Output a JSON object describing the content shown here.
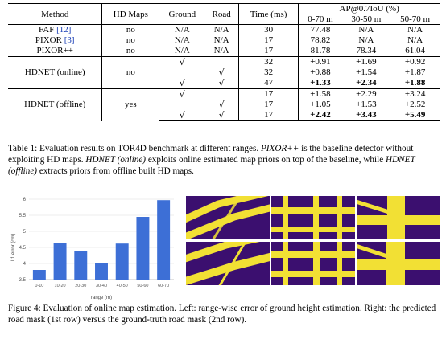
{
  "table": {
    "headers": {
      "method": "Method",
      "hd_maps": "HD Maps",
      "ground": "Ground",
      "road": "Road",
      "time": "Time (ms)",
      "ap": "AP@0.7IoU (%)",
      "ranges": [
        "0-70 m",
        "30-50 m",
        "50-70 m"
      ]
    },
    "baselines": [
      {
        "method": "FAF",
        "cite": "[12]",
        "hd_maps": "no",
        "ground": "N/A",
        "road": "N/A",
        "time": "30",
        "ap": [
          "77.48",
          "N/A",
          "N/A"
        ]
      },
      {
        "method": "PIXOR",
        "cite": "[3]",
        "hd_maps": "no",
        "ground": "N/A",
        "road": "N/A",
        "time": "17",
        "ap": [
          "78.82",
          "N/A",
          "N/A"
        ]
      },
      {
        "method": "PIXOR++",
        "cite": "",
        "hd_maps": "no",
        "ground": "N/A",
        "road": "N/A",
        "time": "17",
        "ap": [
          "81.78",
          "78.34",
          "61.04"
        ]
      }
    ],
    "online": {
      "method": "HDNET (online)",
      "hd_maps": "no",
      "rows": [
        {
          "ground": "√",
          "road": "",
          "time": "32",
          "ap": [
            "+0.91",
            "+1.69",
            "+0.92"
          ],
          "bold": false
        },
        {
          "ground": "",
          "road": "√",
          "time": "32",
          "ap": [
            "+0.88",
            "+1.54",
            "+1.87"
          ],
          "bold": false
        },
        {
          "ground": "√",
          "road": "√",
          "time": "47",
          "ap": [
            "+1.33",
            "+2.34",
            "+1.88"
          ],
          "bold": true
        }
      ]
    },
    "offline": {
      "method": "HDNET (offline)",
      "hd_maps": "yes",
      "rows": [
        {
          "ground": "√",
          "road": "",
          "time": "17",
          "ap": [
            "+1.58",
            "+2.29",
            "+3.24"
          ],
          "bold": false
        },
        {
          "ground": "",
          "road": "√",
          "time": "17",
          "ap": [
            "+1.05",
            "+1.53",
            "+2.52"
          ],
          "bold": false
        },
        {
          "ground": "√",
          "road": "√",
          "time": "17",
          "ap": [
            "+2.42",
            "+3.43",
            "+5.49"
          ],
          "bold": true
        }
      ]
    }
  },
  "table_caption": {
    "label": "Table 1: Evaluation results on TOR4D benchmark at different ranges.",
    "pixor_name": "PIXOR++",
    "after_pixor": "is the baseline detector without exploiting HD maps.",
    "online_name": "HDNET (online)",
    "after_online": "exploits online estimated map priors on top of the baseline, while",
    "offline_name": "HDNET (offline)",
    "after_offline": "extracts priors from offline built HD maps."
  },
  "figure_caption": {
    "text": "Figure 4: Evaluation of online map estimation. Left: range-wise error of ground height estimation. Right: the predicted road mask (1st row) versus the ground-truth road mask (2nd row)."
  },
  "chart_data": {
    "type": "bar",
    "categories": [
      "0-10",
      "10-20",
      "20-30",
      "30-40",
      "40-50",
      "50-60",
      "60-70"
    ],
    "values": [
      3.8,
      4.65,
      4.38,
      4.02,
      4.62,
      5.45,
      5.97
    ],
    "xlabel": "range (m)",
    "ylabel": "L1 error (cm)",
    "ylim": [
      3.5,
      6.0
    ],
    "yticks": [
      "3.5",
      "4",
      "4.5",
      "5",
      "5.5",
      "6"
    ],
    "bar_color": "#3d6fd6",
    "grid": true
  },
  "masks": {
    "background_color": "#3b0f6f",
    "road_color": "#f2e034"
  }
}
